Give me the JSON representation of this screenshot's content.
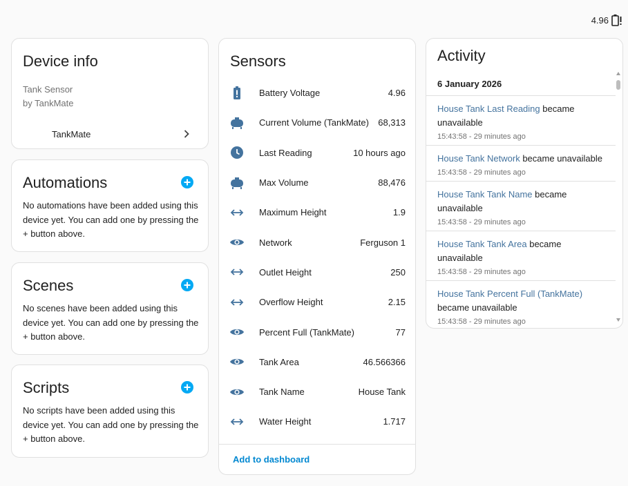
{
  "status": {
    "battery_value": "4.96",
    "battery_icon": "battery-alert-icon"
  },
  "device_info": {
    "title": "Device info",
    "model": "Tank Sensor",
    "manufacturer": "by TankMate",
    "link_label": "TankMate"
  },
  "automations": {
    "title": "Automations",
    "text": "No automations have been added using this device yet. You can add one by pressing the + button above."
  },
  "scenes": {
    "title": "Scenes",
    "text": "No scenes have been added using this device yet. You can add one by pressing the + button above."
  },
  "scripts": {
    "title": "Scripts",
    "text": "No scripts have been added using this device yet. You can add one by pressing the + button above."
  },
  "sensors": {
    "title": "Sensors",
    "items": [
      {
        "icon": "battery-alert-icon",
        "name": "Battery Voltage",
        "value": "4.96"
      },
      {
        "icon": "tank-icon",
        "name": "Current Volume (TankMate)",
        "value": "68,313"
      },
      {
        "icon": "clock-icon",
        "name": "Last Reading",
        "value": "10 hours ago"
      },
      {
        "icon": "tank-icon",
        "name": "Max Volume",
        "value": "88,476"
      },
      {
        "icon": "arrow-left-right-icon",
        "name": "Maximum Height",
        "value": "1.9"
      },
      {
        "icon": "eye-icon",
        "name": "Network",
        "value": "Ferguson 1"
      },
      {
        "icon": "arrow-left-right-icon",
        "name": "Outlet Height",
        "value": "250"
      },
      {
        "icon": "arrow-left-right-icon",
        "name": "Overflow Height",
        "value": "2.15"
      },
      {
        "icon": "eye-icon",
        "name": "Percent Full (TankMate)",
        "value": "77"
      },
      {
        "icon": "eye-icon",
        "name": "Tank Area",
        "value": "46.566366"
      },
      {
        "icon": "eye-icon",
        "name": "Tank Name",
        "value": "House Tank"
      },
      {
        "icon": "arrow-left-right-icon",
        "name": "Water Height",
        "value": "1.717"
      }
    ],
    "footer_action": "Add to dashboard"
  },
  "activity": {
    "title": "Activity",
    "date": "6 January 2026",
    "entries": [
      {
        "entity": "House Tank Last Reading",
        "message": " became unavailable",
        "time": "15:43:58 - 29 minutes ago"
      },
      {
        "entity": "House Tank Network",
        "message": " became unavailable",
        "time": "15:43:58 - 29 minutes ago"
      },
      {
        "entity": "House Tank Tank Name",
        "message": " became unavailable",
        "time": "15:43:58 - 29 minutes ago"
      },
      {
        "entity": "House Tank Tank Area",
        "message": " became unavailable",
        "time": "15:43:58 - 29 minutes ago"
      },
      {
        "entity": "House Tank Percent Full (TankMate)",
        "message": " became unavailable",
        "time": "15:43:58 - 29 minutes ago"
      }
    ]
  },
  "colors": {
    "accent": "#03a9f4",
    "icon": "#44739e",
    "link": "#0288d1"
  }
}
